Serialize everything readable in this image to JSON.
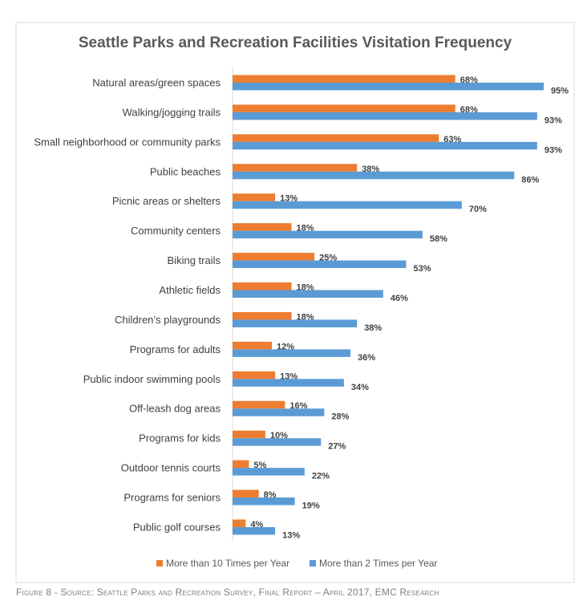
{
  "chart_data": {
    "type": "bar",
    "orientation": "horizontal",
    "title": "Seattle Parks and Recreation Facilities Visitation Frequency",
    "categories": [
      "Natural areas/green spaces",
      "Walking/jogging trails",
      "Small neighborhood or community parks",
      "Public beaches",
      "Picnic areas or shelters",
      "Community centers",
      "Biking trails",
      "Athletic fields",
      "Children’s playgrounds",
      "Programs for adults",
      "Public indoor swimming pools",
      "Off-leash dog areas",
      "Programs for kids",
      "Outdoor tennis courts",
      "Programs for seniors",
      "Public golf courses"
    ],
    "series": [
      {
        "name": "More than 10 Times per Year",
        "color": "#ED7D31",
        "values": [
          68,
          68,
          63,
          38,
          13,
          18,
          25,
          18,
          18,
          12,
          13,
          16,
          10,
          5,
          8,
          4
        ]
      },
      {
        "name": "More than 2 Times per Year",
        "color": "#5B9BD5",
        "values": [
          95,
          93,
          93,
          86,
          70,
          58,
          53,
          46,
          38,
          36,
          34,
          28,
          27,
          22,
          19,
          13
        ]
      }
    ],
    "value_suffix": "%",
    "xlim": [
      0,
      100
    ],
    "grid": false,
    "legend": "bottom"
  },
  "caption": "Figure 8 - Source: Seattle Parks and Recreation Survey, Final Report – April 2017, EMC Research"
}
